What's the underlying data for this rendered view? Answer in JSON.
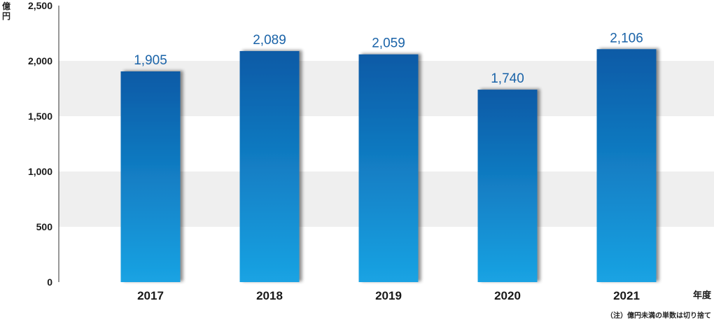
{
  "chart_data": {
    "type": "bar",
    "categories": [
      "2017",
      "2018",
      "2019",
      "2020",
      "2021"
    ],
    "values": [
      1905,
      2089,
      2059,
      1740,
      2106
    ],
    "value_labels": [
      "1,905",
      "2,089",
      "2,059",
      "1,740",
      "2,106"
    ],
    "y_ticks": [
      0,
      500,
      1000,
      1500,
      2000,
      2500
    ],
    "y_tick_labels": [
      "0",
      "500",
      "1,000",
      "1,500",
      "2,000",
      "2,500"
    ],
    "ylim": [
      0,
      2500
    ],
    "ylabel": "億円",
    "xlabel": "年度",
    "note": "（注）億円未満の単数は切り捨て",
    "bands": "alternating light-gray horizontal bands",
    "legend": "none",
    "colors": {
      "bar_top": "#0a5aa6",
      "bar_bottom": "#1aa3e3",
      "data_label": "#1a63a8",
      "band": "#efefef"
    }
  }
}
